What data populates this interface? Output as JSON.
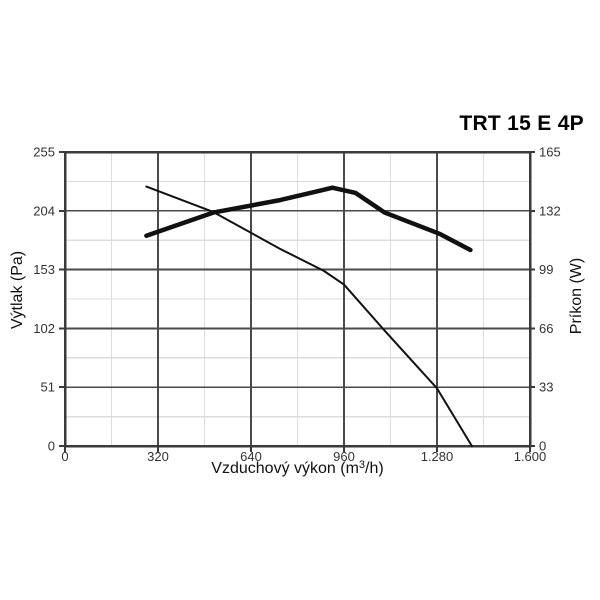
{
  "chart_data": {
    "type": "line",
    "title": "TRT 15 E 4P",
    "xlabel": {
      "prefix": "Vzduchový výkon (m",
      "sup": "3",
      "suffix": "/h)"
    },
    "ylabel_left": "Výtlak (Pa)",
    "ylabel_right": "Príkon (W)",
    "xlim": [
      0,
      1600
    ],
    "ylim_left": [
      0,
      255
    ],
    "ylim_right": [
      0,
      165
    ],
    "grid": {
      "major": true,
      "minor": true
    },
    "legend": "none",
    "x_ticks": [
      {
        "v": 0,
        "label": "0"
      },
      {
        "v": 320,
        "label": "320"
      },
      {
        "v": 640,
        "label": "640"
      },
      {
        "v": 960,
        "label": "960"
      },
      {
        "v": 1280,
        "label": "1.280"
      },
      {
        "v": 1600,
        "label": "1.600"
      }
    ],
    "y_left_ticks": [
      {
        "v": 0,
        "label": "0"
      },
      {
        "v": 51,
        "label": "51"
      },
      {
        "v": 102,
        "label": "102"
      },
      {
        "v": 153,
        "label": "153"
      },
      {
        "v": 204,
        "label": "204"
      },
      {
        "v": 255,
        "label": "255"
      }
    ],
    "y_right_ticks": [
      {
        "v": 0,
        "label": "0"
      },
      {
        "v": 33,
        "label": "33"
      },
      {
        "v": 66,
        "label": "66"
      },
      {
        "v": 99,
        "label": "99"
      },
      {
        "v": 132,
        "label": "132"
      },
      {
        "v": 165,
        "label": "165"
      }
    ],
    "series": [
      {
        "name": "pressure",
        "axis": "left",
        "unit": "Pa",
        "line_width": 2,
        "color": "#111111",
        "points": [
          [
            280,
            225
          ],
          [
            510,
            203
          ],
          [
            740,
            171
          ],
          [
            890,
            152
          ],
          [
            960,
            140
          ],
          [
            1100,
            100
          ],
          [
            1280,
            50
          ],
          [
            1400,
            0
          ]
        ]
      },
      {
        "name": "power",
        "axis": "right",
        "unit": "W",
        "line_width": 4.5,
        "color": "#111111",
        "points": [
          [
            280,
            118
          ],
          [
            510,
            131
          ],
          [
            740,
            138
          ],
          [
            870,
            143
          ],
          [
            920,
            145
          ],
          [
            1000,
            142
          ],
          [
            1100,
            131
          ],
          [
            1290,
            119
          ],
          [
            1395,
            110
          ]
        ]
      }
    ]
  },
  "colors": {
    "background": "#ffffff",
    "frame": "#3a3a3a",
    "grid_major": "#4a4a4a",
    "grid_minor": "#dcdcdc",
    "tick_text": "#333333",
    "title_text": "#000000"
  }
}
